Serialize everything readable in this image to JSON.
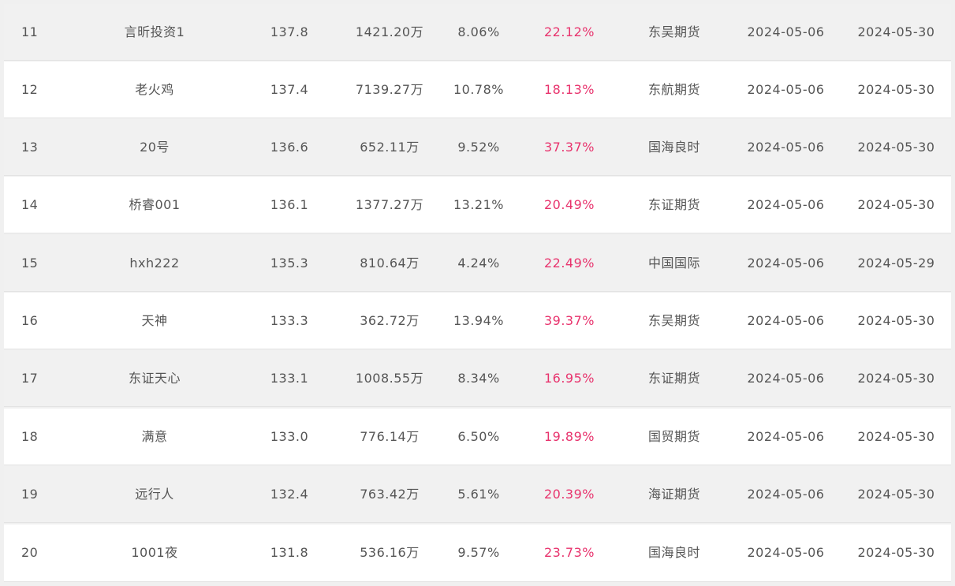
{
  "colors": {
    "return_text": "#e8336d",
    "default_text": "#555555",
    "row_odd": "#f1f1f1",
    "row_even": "#ffffff"
  },
  "rows": [
    {
      "rank": "11",
      "name": "言昕投资1",
      "score": "137.8",
      "equity": "1421.20万",
      "drawdown": "8.06%",
      "return": "22.12%",
      "broker": "东吴期货",
      "start": "2024-05-06",
      "end": "2024-05-30"
    },
    {
      "rank": "12",
      "name": "老火鸡",
      "score": "137.4",
      "equity": "7139.27万",
      "drawdown": "10.78%",
      "return": "18.13%",
      "broker": "东航期货",
      "start": "2024-05-06",
      "end": "2024-05-30"
    },
    {
      "rank": "13",
      "name": "20号",
      "score": "136.6",
      "equity": "652.11万",
      "drawdown": "9.52%",
      "return": "37.37%",
      "broker": "国海良时",
      "start": "2024-05-06",
      "end": "2024-05-30"
    },
    {
      "rank": "14",
      "name": "桥睿001",
      "score": "136.1",
      "equity": "1377.27万",
      "drawdown": "13.21%",
      "return": "20.49%",
      "broker": "东证期货",
      "start": "2024-05-06",
      "end": "2024-05-30"
    },
    {
      "rank": "15",
      "name": "hxh222",
      "score": "135.3",
      "equity": "810.64万",
      "drawdown": "4.24%",
      "return": "22.49%",
      "broker": "中国国际",
      "start": "2024-05-06",
      "end": "2024-05-29"
    },
    {
      "rank": "16",
      "name": "天神",
      "score": "133.3",
      "equity": "362.72万",
      "drawdown": "13.94%",
      "return": "39.37%",
      "broker": "东吴期货",
      "start": "2024-05-06",
      "end": "2024-05-30"
    },
    {
      "rank": "17",
      "name": "东证天心",
      "score": "133.1",
      "equity": "1008.55万",
      "drawdown": "8.34%",
      "return": "16.95%",
      "broker": "东证期货",
      "start": "2024-05-06",
      "end": "2024-05-30"
    },
    {
      "rank": "18",
      "name": "满意",
      "score": "133.0",
      "equity": "776.14万",
      "drawdown": "6.50%",
      "return": "19.89%",
      "broker": "国贸期货",
      "start": "2024-05-06",
      "end": "2024-05-30"
    },
    {
      "rank": "19",
      "name": "远行人",
      "score": "132.4",
      "equity": "763.42万",
      "drawdown": "5.61%",
      "return": "20.39%",
      "broker": "海证期货",
      "start": "2024-05-06",
      "end": "2024-05-30"
    },
    {
      "rank": "20",
      "name": "1001夜",
      "score": "131.8",
      "equity": "536.16万",
      "drawdown": "9.57%",
      "return": "23.73%",
      "broker": "国海良时",
      "start": "2024-05-06",
      "end": "2024-05-30"
    }
  ]
}
